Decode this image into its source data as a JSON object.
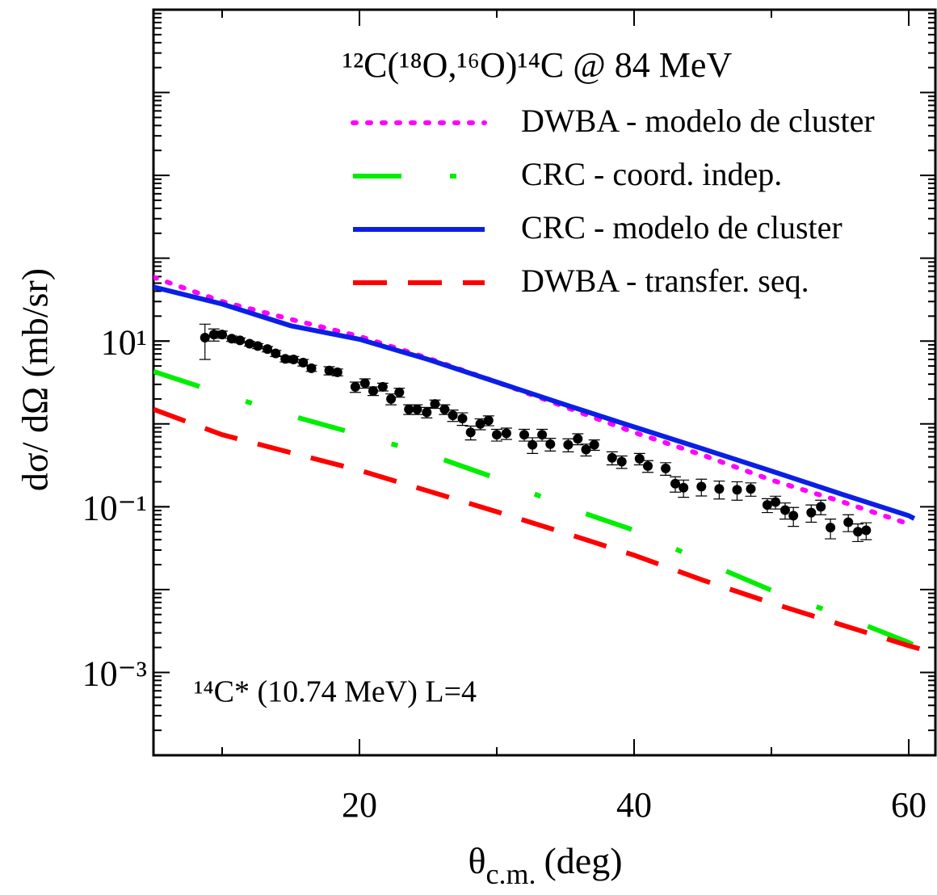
{
  "chart_data": {
    "type": "line",
    "title": "¹²C(¹⁸O,¹⁶O)¹⁴C @ 84 MeV",
    "annotation": "¹⁴C* (10.74 MeV) L=4",
    "xlabel": {
      "symbol": "θ",
      "subscript": "c.m.",
      "unit": "(deg)"
    },
    "ylabel": "dσ/ dΩ (mb/sr)",
    "xlim": [
      5,
      62
    ],
    "ylim": [
      0.0001,
      100000
    ],
    "ylog": true,
    "xticks": [
      20,
      40,
      60
    ],
    "yticks": [
      {
        "value": 10,
        "label": "10¹"
      },
      {
        "value": 0.1,
        "label": "10⁻¹"
      },
      {
        "value": 0.001,
        "label": "10⁻³"
      }
    ],
    "series": [
      {
        "name": "DWBA - modelo de cluster",
        "color": "#ff00ff",
        "linestyle": "dotted",
        "x": [
          5,
          10,
          15,
          20,
          25,
          30,
          35,
          40,
          45,
          50,
          55,
          60
        ],
        "values": [
          59,
          30,
          18.3,
          11.4,
          6.2,
          3.2,
          1.6,
          0.79,
          0.42,
          0.21,
          0.117,
          0.062
        ]
      },
      {
        "name": "CRC - coord. indep.",
        "color": "#00ee00",
        "linestyle": "dashdot",
        "x": [
          5,
          10,
          15,
          20,
          25,
          30,
          35,
          40,
          45,
          50,
          55,
          60,
          62
        ],
        "values": [
          4.3,
          2.3,
          1.26,
          0.74,
          0.43,
          0.22,
          0.1,
          0.052,
          0.022,
          0.0098,
          0.0049,
          0.0023,
          0.0015
        ]
      },
      {
        "name": "CRC - modelo de cluster",
        "color": "#0a1fe6",
        "linestyle": "solid",
        "x": [
          5,
          10,
          15,
          20,
          25,
          30,
          35,
          40,
          45,
          50,
          55,
          60,
          60.4
        ],
        "values": [
          45,
          28,
          15.3,
          10.5,
          6.0,
          3.2,
          1.7,
          0.92,
          0.5,
          0.27,
          0.144,
          0.078,
          0.072
        ]
      },
      {
        "name": "DWBA - transfer. seq.",
        "color": "#ff0000",
        "linestyle": "dashed",
        "x": [
          5,
          10,
          15,
          20,
          25,
          30,
          35,
          40,
          45,
          50,
          55,
          60,
          62
        ],
        "values": [
          1.5,
          0.74,
          0.45,
          0.275,
          0.155,
          0.087,
          0.048,
          0.026,
          0.013,
          0.0069,
          0.0038,
          0.0021,
          0.0017
        ]
      },
      {
        "color": "#000000",
        "marker": "circle",
        "x": [
          8.75,
          9.4,
          10.0,
          10.7,
          11.3,
          12.0,
          12.6,
          13.3,
          13.9,
          14.6,
          15.2,
          15.9,
          16.5,
          17.8,
          18.4,
          19.7,
          20.4,
          21.0,
          21.7,
          22.3,
          22.9,
          23.6,
          24.2,
          24.9,
          25.5,
          26.2,
          26.8,
          27.5,
          28.1,
          28.8,
          29.4,
          30.0,
          30.7,
          32.0,
          32.6,
          33.3,
          33.9,
          35.2,
          35.9,
          36.5,
          37.1,
          38.4,
          39.1,
          40.4,
          41.0,
          42.3,
          43.0,
          43.6,
          44.9,
          46.2,
          47.5,
          48.5,
          49.7,
          50.3,
          51.0,
          51.6,
          52.9,
          53.6,
          54.3,
          55.6,
          56.3,
          56.9
        ],
        "values": [
          11.0,
          12.0,
          12.0,
          10.7,
          10.2,
          9.3,
          8.7,
          8.0,
          7.1,
          6.1,
          6.0,
          5.5,
          4.7,
          4.4,
          4.2,
          2.8,
          3.1,
          2.5,
          2.8,
          2.0,
          2.4,
          1.5,
          1.5,
          1.38,
          1.74,
          1.5,
          1.27,
          1.16,
          0.79,
          1.0,
          1.1,
          0.74,
          0.77,
          0.74,
          0.56,
          0.74,
          0.57,
          0.56,
          0.66,
          0.49,
          0.56,
          0.39,
          0.35,
          0.38,
          0.31,
          0.29,
          0.19,
          0.17,
          0.175,
          0.164,
          0.16,
          0.164,
          0.105,
          0.114,
          0.091,
          0.078,
          0.085,
          0.1,
          0.056,
          0.065,
          0.05,
          0.052
        ],
        "errors": [
          5,
          2,
          1.2,
          0.8,
          0.7,
          0.6,
          0.6,
          0.6,
          0.6,
          0.5,
          0.5,
          0.5,
          0.4,
          0.5,
          0.4,
          0.4,
          0.4,
          0.3,
          0.3,
          0.3,
          0.3,
          0.2,
          0.2,
          0.2,
          0.2,
          0.2,
          0.2,
          0.2,
          0.15,
          0.15,
          0.15,
          0.12,
          0.12,
          0.12,
          0.12,
          0.12,
          0.1,
          0.1,
          0.1,
          0.08,
          0.08,
          0.07,
          0.06,
          0.06,
          0.05,
          0.05,
          0.04,
          0.04,
          0.04,
          0.04,
          0.04,
          0.03,
          0.02,
          0.02,
          0.02,
          0.02,
          0.02,
          0.02,
          0.015,
          0.015,
          0.012,
          0.012
        ]
      }
    ]
  }
}
